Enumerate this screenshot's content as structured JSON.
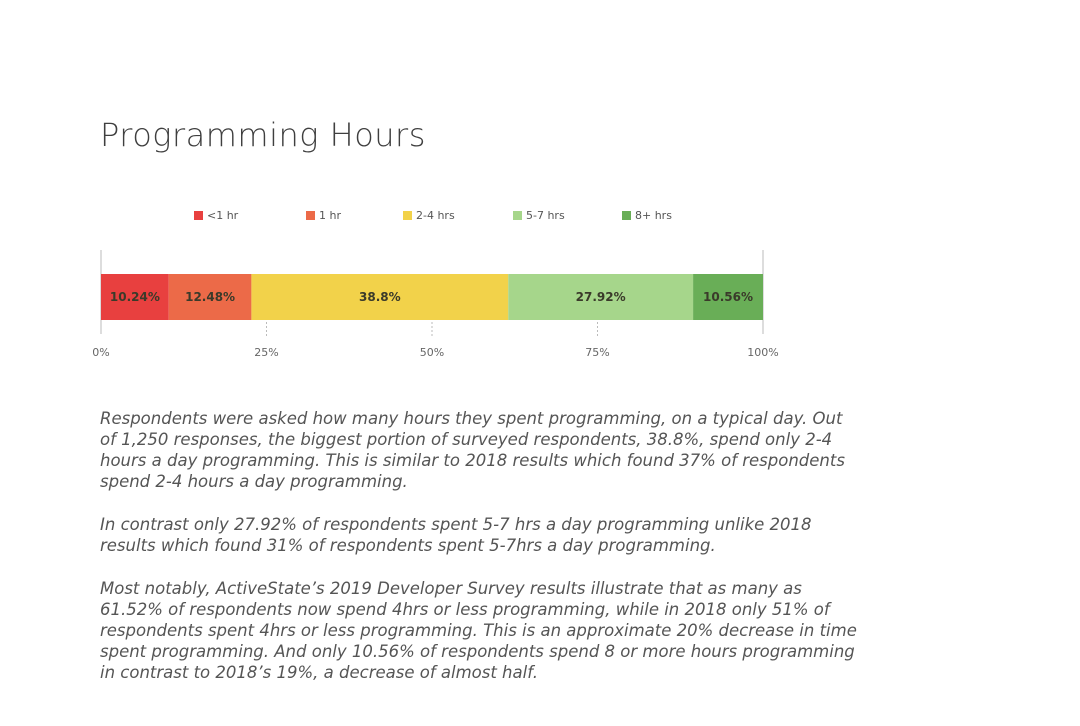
{
  "title": "Programming Hours",
  "chart_data": {
    "type": "bar",
    "orientation": "horizontal-stacked-100",
    "title": "Programming Hours",
    "series": [
      {
        "name": "<1 hr",
        "value": 10.24,
        "label": "10.24%",
        "color": "#e8403f"
      },
      {
        "name": "1 hr",
        "value": 12.48,
        "label": "12.48%",
        "color": "#ec6a48"
      },
      {
        "name": "2-4 hrs",
        "value": 38.8,
        "label": "38.8%",
        "color": "#f2d24a"
      },
      {
        "name": "5-7 hrs",
        "value": 27.92,
        "label": "27.92%",
        "color": "#a6d68b"
      },
      {
        "name": "8+ hrs",
        "value": 10.56,
        "label": "10.56%",
        "color": "#69ae57"
      }
    ],
    "xlim": [
      0,
      100
    ],
    "xticks": [
      0,
      25,
      50,
      75,
      100
    ],
    "xtick_labels": [
      "0%",
      "25%",
      "50%",
      "75%",
      "100%"
    ],
    "legend_position": "top"
  },
  "paragraphs": [
    "Respondents were asked how many hours they spent programming, on a typical day. Out of 1,250 responses, the biggest portion of surveyed respondents, 38.8%, spend only 2-4 hours a day programming. This is similar to 2018 results which found 37% of respondents spend 2-4 hours a day programming.",
    "In contrast only 27.92% of respondents spent 5-7 hrs a day programming unlike 2018 results which found 31% of respondents spent 5-7hrs a day programming.",
    "Most notably, ActiveState’s 2019 Developer Survey results illustrate that as many as 61.52% of respondents now spend 4hrs or less programming, while in 2018 only 51% of respondents spent 4hrs or less programming. This is an approximate 20% decrease in time spent programming. And only 10.56% of respondents spend 8 or more hours programming in contrast to 2018’s 19%, a decrease of almost half."
  ]
}
